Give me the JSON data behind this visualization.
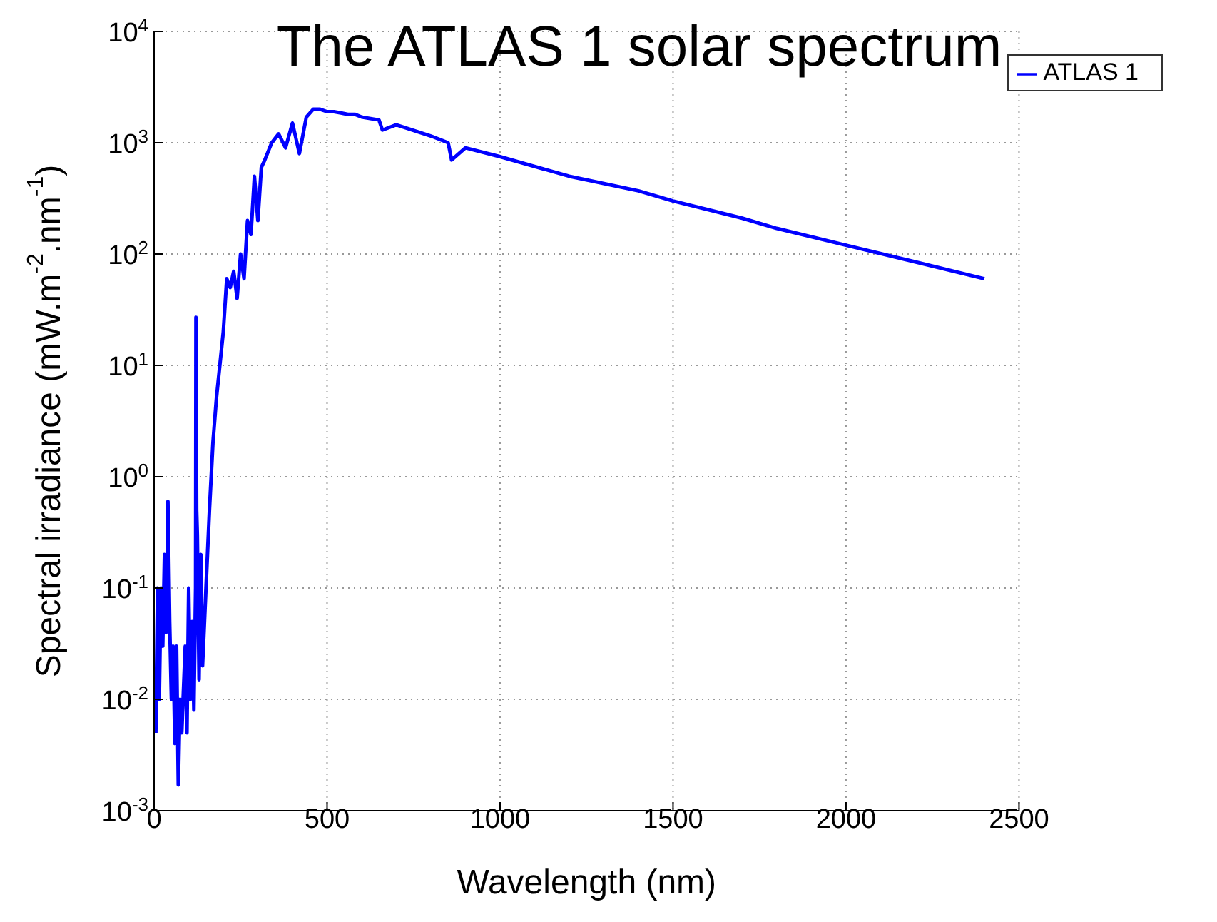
{
  "chart_data": {
    "type": "line",
    "title": "The ATLAS 1 solar spectrum",
    "xlabel": "Wavelength (nm)",
    "ylabel": "Spectral irradiance (mW.m$^{-2}$.nm$^{-1}$)",
    "x": [
      5,
      10,
      15,
      20,
      25,
      30,
      35,
      40,
      45,
      50,
      55,
      60,
      65,
      70,
      75,
      80,
      90,
      95,
      100,
      105,
      110,
      115,
      120,
      121,
      123,
      125,
      130,
      135,
      140,
      150,
      160,
      170,
      180,
      190,
      200,
      210,
      220,
      230,
      240,
      250,
      260,
      270,
      280,
      290,
      300,
      310,
      320,
      340,
      360,
      380,
      400,
      420,
      440,
      460,
      480,
      500,
      520,
      540,
      560,
      580,
      600,
      650,
      660,
      700,
      800,
      850,
      860,
      900,
      1000,
      1200,
      1400,
      1500,
      1700,
      1800,
      2000,
      2200,
      2400
    ],
    "series": [
      {
        "name": "ATLAS 1",
        "color": "#0000ff",
        "values": [
          0.005,
          0.1,
          0.01,
          0.1,
          0.03,
          0.2,
          0.04,
          0.6,
          0.05,
          0.01,
          0.03,
          0.004,
          0.03,
          0.0017,
          0.01,
          0.005,
          0.03,
          0.005,
          0.1,
          0.01,
          0.05,
          0.008,
          0.1,
          27,
          0.5,
          0.3,
          0.015,
          0.2,
          0.02,
          0.1,
          0.5,
          2,
          5,
          10,
          20,
          60,
          50,
          70,
          40,
          100,
          60,
          200,
          150,
          500,
          200,
          600,
          700,
          1000,
          1200,
          900,
          1500,
          800,
          1700,
          2000,
          2000,
          1900,
          1900,
          1850,
          1800,
          1800,
          1700,
          1600,
          1300,
          1450,
          1150,
          1000,
          700,
          900,
          750,
          500,
          370,
          300,
          210,
          170,
          120,
          85,
          60
        ]
      }
    ],
    "xlim": [
      0,
      2500
    ],
    "xticks": [
      0,
      500,
      1000,
      1500,
      2000,
      2500
    ],
    "log": "y",
    "ylim": [
      0.001,
      10000
    ],
    "yticks": [
      {
        "value": 0.001,
        "label": "10$^{-3}$"
      },
      {
        "value": 0.01,
        "label": "10$^{-2}$"
      },
      {
        "value": 0.1,
        "label": "10$^{-1}$"
      },
      {
        "value": 1,
        "label": "10$^{0}$"
      },
      {
        "value": 10,
        "label": "10$^{1}$"
      },
      {
        "value": 100,
        "label": "10$^{2}$"
      },
      {
        "value": 1000,
        "label": "10$^{3}$"
      },
      {
        "value": 10000,
        "label": "10$^{4}$"
      }
    ],
    "grid": true,
    "legend": "top right",
    "marker": "none",
    "line_style": "solid"
  }
}
